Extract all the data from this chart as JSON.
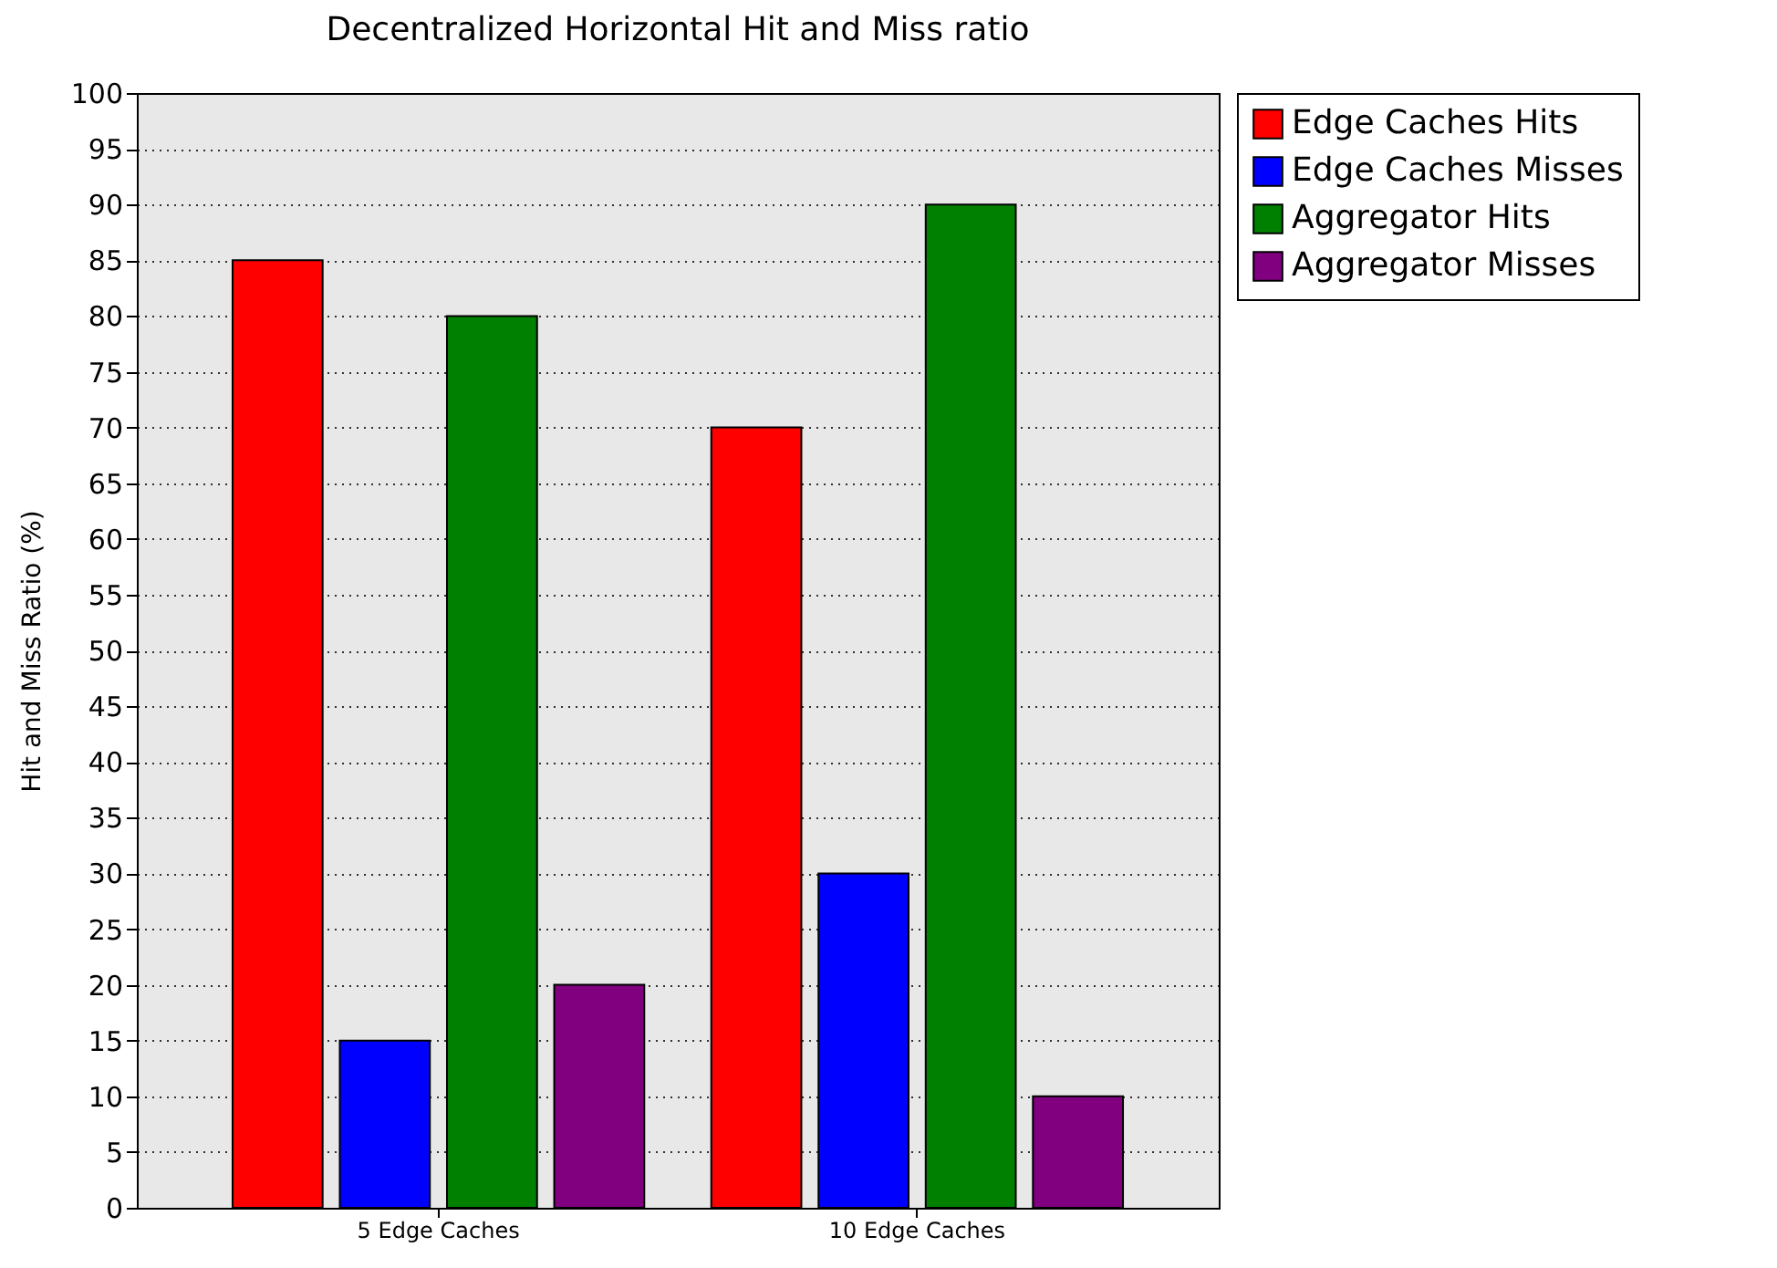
{
  "chart_data": {
    "type": "bar",
    "title": "Decentralized Horizontal Hit and Miss ratio",
    "ylabel": "Hit and Miss Ratio (%)",
    "categories": [
      "5 Edge Caches",
      "10 Edge Caches"
    ],
    "series": [
      {
        "name": "Edge Caches Hits",
        "color": "#ff0000",
        "values": [
          85,
          70
        ]
      },
      {
        "name": "Edge Caches Misses",
        "color": "#0000ff",
        "values": [
          15,
          30
        ]
      },
      {
        "name": "Aggregator Hits",
        "color": "#008000",
        "values": [
          80,
          90
        ]
      },
      {
        "name": "Aggregator Misses",
        "color": "#800080",
        "values": [
          20,
          10
        ]
      }
    ],
    "ylim": [
      0,
      100
    ],
    "yticks": [
      0,
      5,
      10,
      15,
      20,
      25,
      30,
      35,
      40,
      45,
      50,
      55,
      60,
      65,
      70,
      75,
      80,
      85,
      90,
      95,
      100
    ],
    "grid": "y",
    "legend": "right"
  }
}
